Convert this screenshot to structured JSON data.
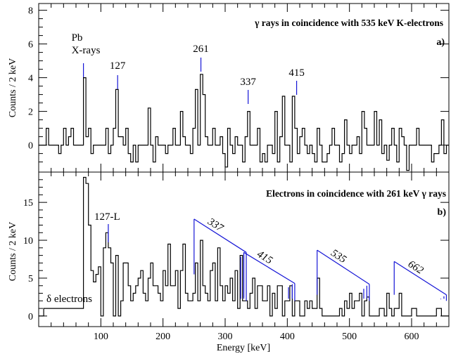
{
  "chart_data": [
    {
      "type": "histogram",
      "panel": "a",
      "title": "γ rays in coincidence with 535 keV K-electrons",
      "panel_label": "a)",
      "ylabel": "Counts / 2 keV",
      "xlim": [
        0,
        660
      ],
      "ylim": [
        -1.6,
        8.4
      ],
      "yticks": [
        0,
        2,
        4,
        6,
        8
      ],
      "baseline": 0,
      "peaks": [
        {
          "x": 72,
          "y": 4.0
        },
        {
          "x": 126,
          "y": 3.3
        },
        {
          "x": 176,
          "y": 2.2
        },
        {
          "x": 228,
          "y": 2.0
        },
        {
          "x": 252,
          "y": 3.3
        },
        {
          "x": 260,
          "y": 4.2
        },
        {
          "x": 264,
          "y": 3.0
        },
        {
          "x": 300,
          "y": 2.1
        },
        {
          "x": 336,
          "y": 2.0
        },
        {
          "x": 380,
          "y": 2.0
        },
        {
          "x": 394,
          "y": 2.9
        },
        {
          "x": 410,
          "y": 2.9
        },
        {
          "x": 520,
          "y": 2.0
        }
      ],
      "dips": [
        {
          "x": 300,
          "y": -1.3
        },
        {
          "x": 330,
          "y": -1.0
        },
        {
          "x": 560,
          "y": -0.9
        },
        {
          "x": 592,
          "y": -1.5
        }
      ],
      "markers": [
        {
          "x": 72,
          "label_lines": [
            "Pb",
            "X-rays"
          ]
        },
        {
          "x": 127,
          "label_lines": [
            "127"
          ]
        },
        {
          "x": 261,
          "label_lines": [
            "261"
          ]
        },
        {
          "x": 337,
          "label_lines": [
            "337"
          ]
        },
        {
          "x": 415,
          "label_lines": [
            "415"
          ]
        }
      ]
    },
    {
      "type": "histogram",
      "panel": "b",
      "title": "Electrons in coincidence with 261 keV  γ rays",
      "panel_label": "b)",
      "ylabel": "Counts / 2 keV",
      "xlabel": "Energy [keV]",
      "xlim": [
        0,
        660
      ],
      "xticks": [
        100,
        200,
        300,
        400,
        500,
        600
      ],
      "ylim": [
        -1.4,
        19
      ],
      "yticks": [
        0,
        5,
        10,
        15
      ],
      "low_energy_profile": [
        {
          "x": 72,
          "y": 19
        },
        {
          "x": 74,
          "y": 18.3
        },
        {
          "x": 78,
          "y": 17.5
        },
        {
          "x": 80,
          "y": 15
        },
        {
          "x": 82,
          "y": 12
        },
        {
          "x": 84,
          "y": 9
        },
        {
          "x": 86,
          "y": 6
        },
        {
          "x": 88,
          "y": 3
        },
        {
          "x": 90,
          "y": 4.5
        },
        {
          "x": 94,
          "y": 5.5
        },
        {
          "x": 98,
          "y": 6.5
        },
        {
          "x": 104,
          "y": 9
        },
        {
          "x": 108,
          "y": 11
        },
        {
          "x": 112,
          "y": 9
        },
        {
          "x": 118,
          "y": 7
        },
        {
          "x": 126,
          "y": 8
        }
      ],
      "peaks": [
        {
          "x": 210,
          "y": 9.5
        },
        {
          "x": 232,
          "y": 9.5
        },
        {
          "x": 262,
          "y": 10
        },
        {
          "x": 290,
          "y": 9
        },
        {
          "x": 326,
          "y": 8
        },
        {
          "x": 404,
          "y": 4
        },
        {
          "x": 448,
          "y": 5
        },
        {
          "x": 528,
          "y": 2.5
        },
        {
          "x": 572,
          "y": 1
        }
      ],
      "annotations": [
        {
          "text": "127-L",
          "x": 110
        },
        {
          "text": "δ electrons",
          "x": 58
        }
      ],
      "conversion_lines": [
        {
          "label": "337",
          "k_x": 250,
          "k_y": 12.8,
          "markers": [
            {
              "x": 325,
              "y": 7.8
            },
            {
              "x": 330,
              "y": 8.2
            },
            {
              "x": 334,
              "y": 8.4
            }
          ]
        },
        {
          "label": "415",
          "k_x": 330,
          "k_y": 8.4,
          "markers": [
            {
              "x": 402,
              "y": 3.8
            },
            {
              "x": 408,
              "y": 4.2
            },
            {
              "x": 412,
              "y": 4.3
            }
          ]
        },
        {
          "label": "535",
          "k_x": 448,
          "k_y": 8.7,
          "markers": [
            {
              "x": 523,
              "y": 3.6
            },
            {
              "x": 528,
              "y": 4.0
            },
            {
              "x": 532,
              "y": 4.2
            }
          ]
        },
        {
          "label": "662",
          "k_x": 572,
          "k_y": 7.2,
          "markers": [
            {
              "x": 647,
              "y": 2.2
            },
            {
              "x": 652,
              "y": 2.6
            },
            {
              "x": 656,
              "y": 2.8
            }
          ]
        }
      ]
    }
  ]
}
